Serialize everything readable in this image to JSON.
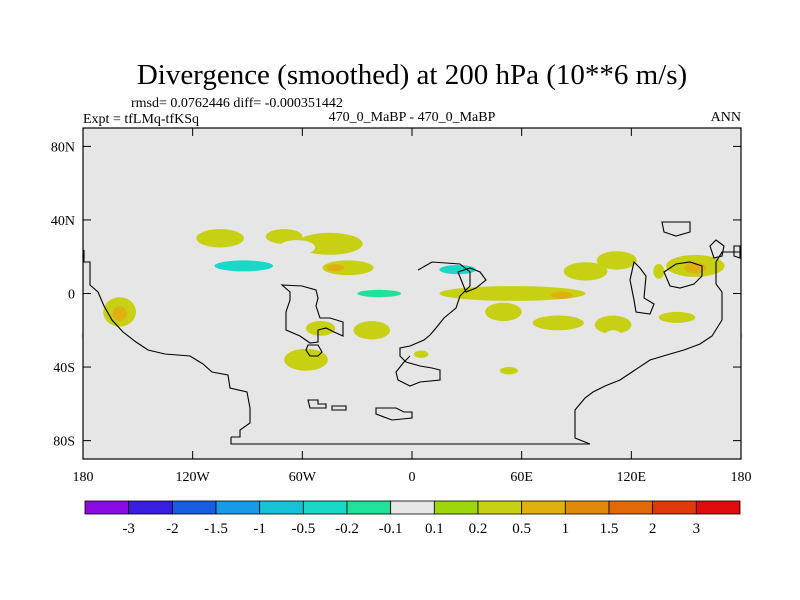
{
  "chart_data": {
    "type": "heatmap",
    "title": "Divergence (smoothed) at 200 hPa (10**6 m/s)",
    "stats": "rmsd= 0.0762446 diff= -0.000351442",
    "experiment": "Expt = tfLMq-tfKSq",
    "case": "470_0_MaBP - 470_0_MaBP",
    "season": "ANN",
    "xlim": [
      -180,
      180
    ],
    "ylim": [
      -90,
      90
    ],
    "x_ticks": [
      {
        "value": -180,
        "label": "180"
      },
      {
        "value": -120,
        "label": "120W"
      },
      {
        "value": -60,
        "label": "60W"
      },
      {
        "value": 0,
        "label": "0"
      },
      {
        "value": 60,
        "label": "60E"
      },
      {
        "value": 120,
        "label": "120E"
      },
      {
        "value": 180,
        "label": "180"
      }
    ],
    "y_ticks": [
      {
        "value": 80,
        "label": "80N"
      },
      {
        "value": 40,
        "label": "40N"
      },
      {
        "value": 0,
        "label": "0"
      },
      {
        "value": -40,
        "label": "40S"
      },
      {
        "value": -80,
        "label": "80S"
      }
    ],
    "background_color": "#e6e6e6",
    "colorbar": {
      "colors": [
        "#8a0ce0",
        "#3a1ee0",
        "#1a5ee0",
        "#1a9ae6",
        "#17c2d6",
        "#18d8c8",
        "#20e09a",
        "#e6e6e6",
        "#9ed60e",
        "#c8d014",
        "#e0b010",
        "#e08a0c",
        "#e06a08",
        "#e03a0a",
        "#e00c0c"
      ],
      "labels": [
        "-3",
        "-2",
        "-1.5",
        "-1",
        "-0.5",
        "-0.2",
        "-0.1",
        "0.1",
        "0.2",
        "0.5",
        "1",
        "1.5",
        "2",
        "3"
      ]
    },
    "anomalies": [
      {
        "lon": -105,
        "lat": 30,
        "rx": 13,
        "ry": 5,
        "level": 0.2
      },
      {
        "lon": -70,
        "lat": 31,
        "rx": 10,
        "ry": 4,
        "level": 0.2
      },
      {
        "lon": -45,
        "lat": 27,
        "rx": 18,
        "ry": 6,
        "level": 0.2
      },
      {
        "lon": -63,
        "lat": 25,
        "rx": 10,
        "ry": 4,
        "level": -0.1
      },
      {
        "lon": -90,
        "lat": 14,
        "rx": 36,
        "ry": 6,
        "level": -0.1
      },
      {
        "lon": -92,
        "lat": 15,
        "rx": 16,
        "ry": 3,
        "level": -0.5
      },
      {
        "lon": -150,
        "lat": 12,
        "rx": 6,
        "ry": 3,
        "level": -0.1
      },
      {
        "lon": -35,
        "lat": 14,
        "rx": 14,
        "ry": 4,
        "level": 0.2
      },
      {
        "lon": -42,
        "lat": 14,
        "rx": 5,
        "ry": 2,
        "level": 0.5
      },
      {
        "lon": 5,
        "lat": 14,
        "rx": 14,
        "ry": 4,
        "level": -0.1
      },
      {
        "lon": 33,
        "lat": 13,
        "rx": 30,
        "ry": 5,
        "level": -0.1
      },
      {
        "lon": 25,
        "lat": 13,
        "rx": 10,
        "ry": 2.5,
        "level": -0.5
      },
      {
        "lon": 72,
        "lat": 14,
        "rx": 12,
        "ry": 4,
        "level": -0.1
      },
      {
        "lon": 95,
        "lat": 12,
        "rx": 12,
        "ry": 5,
        "level": 0.2
      },
      {
        "lon": 112,
        "lat": 18,
        "rx": 11,
        "ry": 5,
        "level": 0.2
      },
      {
        "lon": 155,
        "lat": 15,
        "rx": 16,
        "ry": 6,
        "level": 0.2
      },
      {
        "lon": 155,
        "lat": 14,
        "rx": 6,
        "ry": 3,
        "level": 0.5
      },
      {
        "lon": 135,
        "lat": 12,
        "rx": 3,
        "ry": 4,
        "level": 0.2
      },
      {
        "lon": -10,
        "lat": 0,
        "rx": 45,
        "ry": 4,
        "level": -0.1
      },
      {
        "lon": -18,
        "lat": 0,
        "rx": 12,
        "ry": 2,
        "level": -0.2
      },
      {
        "lon": 55,
        "lat": 0,
        "rx": 40,
        "ry": 4,
        "level": 0.2
      },
      {
        "lon": 82,
        "lat": -1,
        "rx": 6,
        "ry": 2,
        "level": 0.5
      },
      {
        "lon": -160,
        "lat": -10,
        "rx": 9,
        "ry": 8,
        "level": 0.2
      },
      {
        "lon": -160,
        "lat": -11,
        "rx": 4,
        "ry": 4,
        "level": 0.5
      },
      {
        "lon": -140,
        "lat": -15,
        "rx": 3,
        "ry": 3,
        "level": -0.1
      },
      {
        "lon": -50,
        "lat": -19,
        "rx": 8,
        "ry": 4,
        "level": 0.2
      },
      {
        "lon": -22,
        "lat": -20,
        "rx": 10,
        "ry": 5,
        "level": 0.2
      },
      {
        "lon": 8,
        "lat": -20,
        "rx": 15,
        "ry": 4,
        "level": -0.1
      },
      {
        "lon": 50,
        "lat": -10,
        "rx": 10,
        "ry": 5,
        "level": 0.2
      },
      {
        "lon": 80,
        "lat": -16,
        "rx": 14,
        "ry": 4,
        "level": 0.2
      },
      {
        "lon": 110,
        "lat": -17,
        "rx": 10,
        "ry": 5,
        "level": 0.2
      },
      {
        "lon": 145,
        "lat": -13,
        "rx": 10,
        "ry": 3,
        "level": 0.2
      },
      {
        "lon": 60,
        "lat": -30,
        "rx": 12,
        "ry": 5,
        "level": -0.1
      },
      {
        "lon": 110,
        "lat": -25,
        "rx": 6,
        "ry": 5,
        "level": -0.1
      },
      {
        "lon": -58,
        "lat": -36,
        "rx": 12,
        "ry": 6,
        "level": 0.2
      },
      {
        "lon": 5,
        "lat": -33,
        "rx": 4,
        "ry": 2,
        "level": 0.2
      },
      {
        "lon": 53,
        "lat": -42,
        "rx": 5,
        "ry": 2,
        "level": 0.2
      },
      {
        "lon": -178,
        "lat": -23,
        "rx": 3,
        "ry": 3,
        "level": -0.1
      },
      {
        "lon": 178,
        "lat": -23,
        "rx": 3,
        "ry": 3,
        "level": -0.1
      }
    ]
  }
}
